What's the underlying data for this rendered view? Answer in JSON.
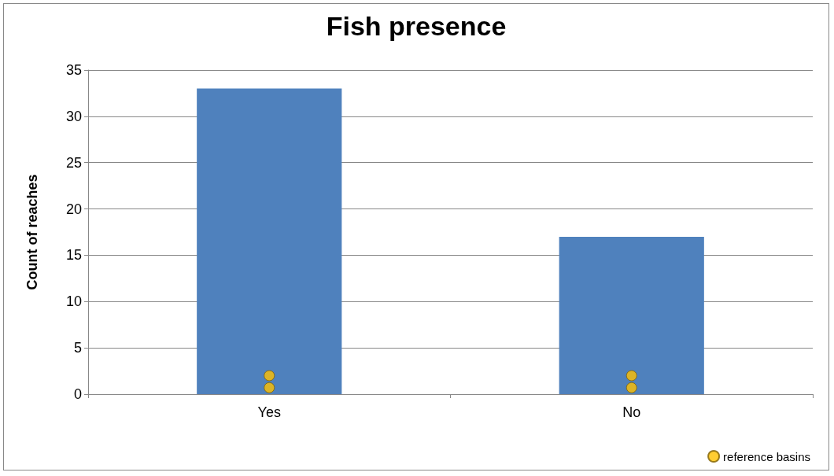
{
  "chart_data": {
    "type": "bar",
    "title": "Fish presence",
    "ylabel": "Count of reaches",
    "categories": [
      "Yes",
      "No"
    ],
    "series": [
      {
        "type": "bar",
        "color": "#4f81bd",
        "values": [
          33,
          17
        ]
      },
      {
        "type": "scatter",
        "name": "reference basins",
        "color": "#ffc000",
        "x": [
          "Yes",
          "Yes",
          "No",
          "No"
        ],
        "values": [
          2,
          0.7,
          2,
          0.7
        ]
      }
    ],
    "ylim": [
      0,
      35
    ],
    "yticks": [
      0,
      5,
      10,
      15,
      20,
      25,
      30,
      35
    ],
    "grid": "y",
    "legend": "bottom right",
    "marker": "circle"
  }
}
